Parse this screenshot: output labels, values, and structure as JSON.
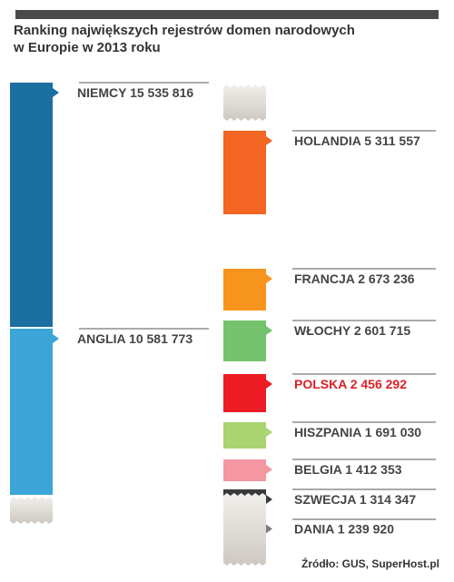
{
  "title_lines": [
    "Ranking największych rejestrów domen narodowych",
    "w Europie w 2013 roku"
  ],
  "source": "Źródło: GUS, SuperHost.pl",
  "chart_data": {
    "type": "bar",
    "title": "Ranking największych rejestrów domen narodowych w Europie w 2013 roku",
    "unit": "",
    "categories": [
      "NIEMCY",
      "ANGLIA",
      "HOLANDIA",
      "FRANCJA",
      "WŁOCHY",
      "POLSKA",
      "HISZPANIA",
      "BELGIA",
      "SZWECJA",
      "DANIA"
    ],
    "values": [
      15535816,
      10581773,
      5311557,
      2673236,
      2601715,
      2456292,
      1691030,
      1412353,
      1314347,
      1239920
    ],
    "labels": [
      "NIEMCY 15 535 816",
      "ANGLIA 10 581 773",
      "HOLANDIA 5 311 557",
      "FRANCJA 2 673 236",
      "WŁOCHY 2 601 715",
      "POLSKA 2 456 292",
      "HISZPANIA 1 691 030",
      "BELGIA 1 412 353",
      "SZWECJA 1 314 347",
      "DANIA 1 239 920"
    ],
    "colors": [
      "#1b6fa1",
      "#3aa5d6",
      "#f26522",
      "#f7941d",
      "#74c36c",
      "#ed1c24",
      "#a9d46f",
      "#f497a0",
      "#3a3a3a",
      "#7e7e82"
    ],
    "highlight": "POLSKA",
    "highlight_color": "#dc1f26"
  }
}
